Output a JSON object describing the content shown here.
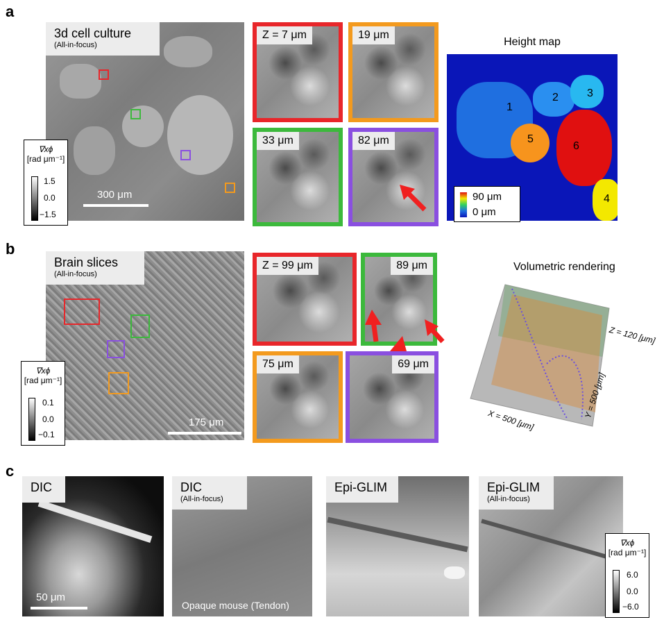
{
  "panels": {
    "a": {
      "letter": "a",
      "main_title": "3d cell culture",
      "main_subtitle": "(All-in-focus)",
      "scale_label": "300 μm",
      "colorbar": {
        "symbol": "∇xϕ",
        "unit": "[rad μm⁻¹]",
        "ticks": [
          "1.5",
          "0.0",
          "−1.5"
        ]
      },
      "crops": [
        {
          "label": "Z = 7 μm",
          "color": "#e8262a"
        },
        {
          "label": "19 μm",
          "color": "#f39a1e"
        },
        {
          "label": "33 μm",
          "color": "#3cb93c"
        },
        {
          "label": "82 μm",
          "color": "#8a4fe0"
        }
      ],
      "height_map": {
        "title": "Height map",
        "regions": [
          "1",
          "2",
          "3",
          "4",
          "5",
          "6"
        ],
        "legend_max": "90 μm",
        "legend_min": "0 μm"
      }
    },
    "b": {
      "letter": "b",
      "main_title": "Brain slices",
      "main_subtitle": "(All-in-focus)",
      "scale_label": "175 μm",
      "colorbar": {
        "symbol": "∇xϕ",
        "unit": "[rad μm⁻¹]",
        "ticks": [
          "0.1",
          "0.0",
          "−0.1"
        ]
      },
      "crops": [
        {
          "label": "Z = 99 μm",
          "color": "#e8262a"
        },
        {
          "label": "89 μm",
          "color": "#3cb93c"
        },
        {
          "label": "75 μm",
          "color": "#f39a1e"
        },
        {
          "label": "69 μm",
          "color": "#8a4fe0"
        }
      ],
      "volume": {
        "title": "Volumetric rendering",
        "z_label": "Z = 120 [μm]",
        "y_label": "Y = 500 [μm]",
        "x_label": "X = 500 [μm]"
      }
    },
    "c": {
      "letter": "c",
      "images": [
        {
          "title": "DIC",
          "subtitle": ""
        },
        {
          "title": "DIC",
          "subtitle": "(All-in-focus)"
        },
        {
          "title": "Epi-GLIM",
          "subtitle": ""
        },
        {
          "title": "Epi-GLIM",
          "subtitle": "(All-in-focus)"
        }
      ],
      "scale_label": "50 μm",
      "caption": "Opaque mouse (Tendon)",
      "colorbar": {
        "symbol": "∇xϕ",
        "unit": "[rad μm⁻¹]",
        "ticks": [
          "6.0",
          "0.0",
          "−6.0"
        ]
      }
    }
  }
}
